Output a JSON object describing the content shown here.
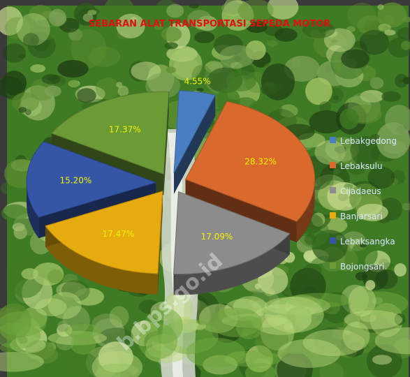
{
  "chart_data": {
    "type": "pie",
    "title": "SEBARAN ALAT TRANSPORTASI SEPEDA MOTOR",
    "categories": [
      "Lebakgedong",
      "Lebaksulu",
      "Cijadaeus",
      "Banjarsari",
      "Lebaksangka",
      "Bojongsari"
    ],
    "values": [
      4.55,
      28.32,
      17.09,
      17.47,
      15.2,
      17.37
    ],
    "labels": [
      "4.55%",
      "28.32%",
      "17.09%",
      "17.47%",
      "15.20%",
      "17.37%"
    ],
    "colors": [
      "#4a7ec2",
      "#d9692c",
      "#8c8c8c",
      "#e6ab0e",
      "#3556a6",
      "#6b9a36"
    ],
    "legend_position": "right"
  },
  "watermark": "b.bps.go.id",
  "background": {
    "sky": "#7fa35a",
    "foliage_dark": "#1f3f14",
    "foliage_mid": "#3f7a24",
    "foliage_light": "#a8c86a",
    "waterfall": "#d8dcd4",
    "frame": "#3a3a3a"
  }
}
